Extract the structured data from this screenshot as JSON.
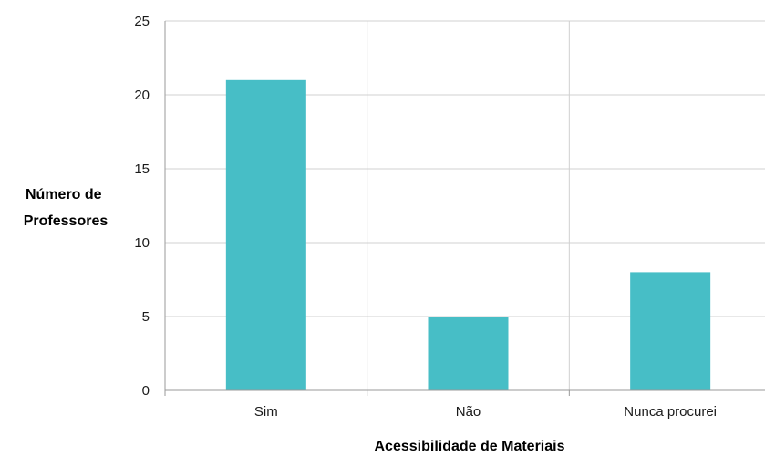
{
  "chart_data": {
    "type": "bar",
    "categories": [
      "Sim",
      "Não",
      "Nunca procurei"
    ],
    "values": [
      21,
      5,
      8
    ],
    "title": "",
    "xlabel": "Acessibilidade de Materiais",
    "ylabel": [
      "Número de",
      "Professores"
    ],
    "ylim": [
      0,
      25
    ],
    "yticks": [
      "0",
      "5",
      "10",
      "15",
      "20",
      "25"
    ],
    "grid": true,
    "colors": {
      "bar": "#47BEC6",
      "grid": "#D0D0D0",
      "axis": "#9A9A9A"
    }
  }
}
